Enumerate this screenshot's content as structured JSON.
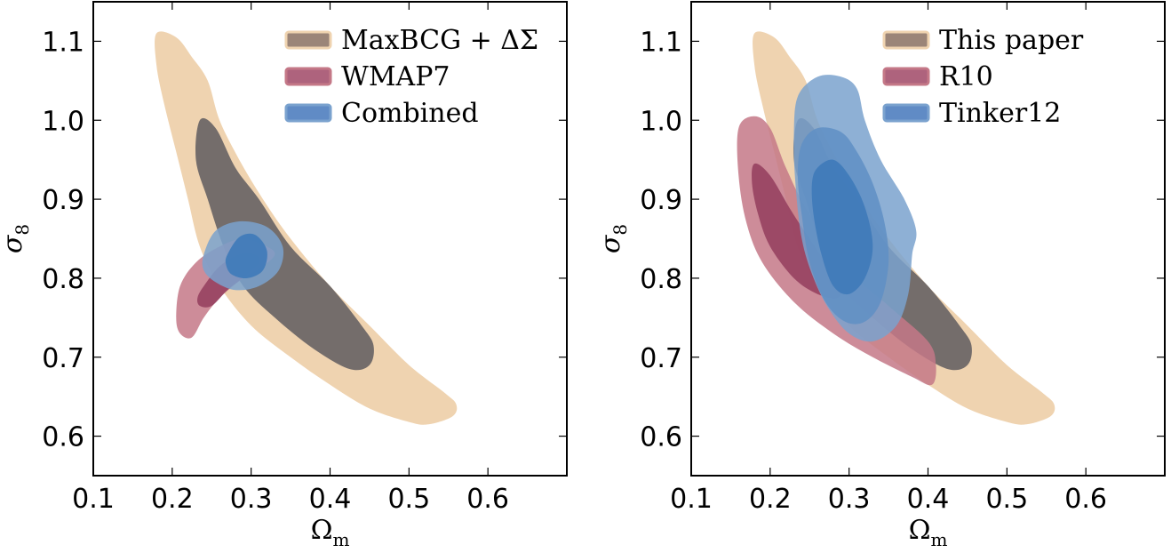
{
  "chart_data": [
    {
      "type": "contour",
      "xlabel": "Ω_m",
      "ylabel": "σ_8",
      "xlim": [
        0.1,
        0.7
      ],
      "ylim": [
        0.55,
        1.15
      ],
      "xticks": [
        "0.1",
        "0.2",
        "0.3",
        "0.4",
        "0.5",
        "0.6"
      ],
      "yticks": [
        "0.6",
        "0.7",
        "0.8",
        "0.9",
        "1.0",
        "1.1"
      ],
      "legend_position": "top-right",
      "series": [
        {
          "name": "MaxBCG + ΔΣ",
          "color_outer": "#efd3b0",
          "color_inner": "#746d6b",
          "legend_color": "#8a7060",
          "outer": [
            [
              0.18,
              1.11
            ],
            [
              0.205,
              1.105
            ],
            [
              0.225,
              1.08
            ],
            [
              0.245,
              1.05
            ],
            [
              0.26,
              1.0
            ],
            [
              0.285,
              0.95
            ],
            [
              0.315,
              0.9
            ],
            [
              0.35,
              0.85
            ],
            [
              0.4,
              0.79
            ],
            [
              0.45,
              0.74
            ],
            [
              0.5,
              0.69
            ],
            [
              0.545,
              0.655
            ],
            [
              0.56,
              0.64
            ],
            [
              0.555,
              0.625
            ],
            [
              0.525,
              0.615
            ],
            [
              0.5,
              0.618
            ],
            [
              0.45,
              0.635
            ],
            [
              0.4,
              0.665
            ],
            [
              0.35,
              0.7
            ],
            [
              0.3,
              0.74
            ],
            [
              0.26,
              0.79
            ],
            [
              0.235,
              0.84
            ],
            [
              0.22,
              0.9
            ],
            [
              0.205,
              0.96
            ],
            [
              0.19,
              1.02
            ],
            [
              0.18,
              1.07
            ]
          ],
          "inner": [
            [
              0.235,
              1.0
            ],
            [
              0.255,
              0.99
            ],
            [
              0.28,
              0.94
            ],
            [
              0.31,
              0.9
            ],
            [
              0.35,
              0.84
            ],
            [
              0.4,
              0.79
            ],
            [
              0.44,
              0.74
            ],
            [
              0.455,
              0.715
            ],
            [
              0.45,
              0.69
            ],
            [
              0.425,
              0.685
            ],
            [
              0.38,
              0.71
            ],
            [
              0.33,
              0.75
            ],
            [
              0.29,
              0.79
            ],
            [
              0.265,
              0.84
            ],
            [
              0.245,
              0.9
            ],
            [
              0.23,
              0.95
            ]
          ]
        },
        {
          "name": "WMAP7",
          "color_outer": "#c47887",
          "color_inner": "#974160",
          "legend_color": "#a04866",
          "outer": [
            [
              0.21,
              0.79
            ],
            [
              0.23,
              0.82
            ],
            [
              0.26,
              0.84
            ],
            [
              0.29,
              0.85
            ],
            [
              0.32,
              0.84
            ],
            [
              0.33,
              0.83
            ],
            [
              0.315,
              0.815
            ],
            [
              0.29,
              0.8
            ],
            [
              0.26,
              0.775
            ],
            [
              0.24,
              0.75
            ],
            [
              0.225,
              0.725
            ],
            [
              0.21,
              0.73
            ],
            [
              0.205,
              0.75
            ]
          ],
          "inner": [
            [
              0.24,
              0.79
            ],
            [
              0.26,
              0.815
            ],
            [
              0.285,
              0.83
            ],
            [
              0.305,
              0.83
            ],
            [
              0.31,
              0.82
            ],
            [
              0.295,
              0.805
            ],
            [
              0.27,
              0.785
            ],
            [
              0.25,
              0.765
            ],
            [
              0.235,
              0.765
            ],
            [
              0.232,
              0.775
            ]
          ]
        },
        {
          "name": "Combined",
          "color_outer": "#7aa2ce",
          "color_inner": "#3e7ab9",
          "legend_color": "#4477bb",
          "outer": [
            [
              0.24,
              0.83
            ],
            [
              0.255,
              0.86
            ],
            [
              0.285,
              0.872
            ],
            [
              0.32,
              0.865
            ],
            [
              0.34,
              0.84
            ],
            [
              0.335,
              0.81
            ],
            [
              0.31,
              0.79
            ],
            [
              0.28,
              0.785
            ],
            [
              0.255,
              0.795
            ],
            [
              0.24,
              0.81
            ]
          ],
          "inner": [
            [
              0.27,
              0.83
            ],
            [
              0.285,
              0.852
            ],
            [
              0.305,
              0.855
            ],
            [
              0.32,
              0.835
            ],
            [
              0.315,
              0.81
            ],
            [
              0.295,
              0.8
            ],
            [
              0.275,
              0.805
            ],
            [
              0.268,
              0.818
            ]
          ]
        }
      ]
    },
    {
      "type": "contour",
      "xlabel": "Ω_m",
      "ylabel": "σ_8",
      "xlim": [
        0.1,
        0.7
      ],
      "ylim": [
        0.55,
        1.15
      ],
      "xticks": [
        "0.1",
        "0.2",
        "0.3",
        "0.4",
        "0.5",
        "0.6"
      ],
      "yticks": [
        "0.6",
        "0.7",
        "0.8",
        "0.9",
        "1.0",
        "1.1"
      ],
      "legend_position": "top-right",
      "series": [
        {
          "name": "This  paper",
          "color_outer": "#efd3b0",
          "color_inner": "#746d6b",
          "legend_color": "#8a7060",
          "outer": [
            [
              0.18,
              1.11
            ],
            [
              0.205,
              1.105
            ],
            [
              0.225,
              1.08
            ],
            [
              0.245,
              1.05
            ],
            [
              0.26,
              1.0
            ],
            [
              0.285,
              0.95
            ],
            [
              0.315,
              0.9
            ],
            [
              0.35,
              0.85
            ],
            [
              0.4,
              0.79
            ],
            [
              0.45,
              0.74
            ],
            [
              0.5,
              0.69
            ],
            [
              0.545,
              0.655
            ],
            [
              0.56,
              0.64
            ],
            [
              0.555,
              0.625
            ],
            [
              0.525,
              0.615
            ],
            [
              0.5,
              0.618
            ],
            [
              0.45,
              0.635
            ],
            [
              0.4,
              0.665
            ],
            [
              0.35,
              0.7
            ],
            [
              0.3,
              0.74
            ],
            [
              0.26,
              0.79
            ],
            [
              0.235,
              0.84
            ],
            [
              0.22,
              0.9
            ],
            [
              0.205,
              0.96
            ],
            [
              0.19,
              1.02
            ],
            [
              0.18,
              1.07
            ]
          ],
          "inner": [
            [
              0.235,
              1.0
            ],
            [
              0.255,
              0.99
            ],
            [
              0.28,
              0.94
            ],
            [
              0.31,
              0.9
            ],
            [
              0.35,
              0.84
            ],
            [
              0.4,
              0.79
            ],
            [
              0.44,
              0.74
            ],
            [
              0.455,
              0.715
            ],
            [
              0.45,
              0.69
            ],
            [
              0.425,
              0.685
            ],
            [
              0.38,
              0.71
            ],
            [
              0.33,
              0.75
            ],
            [
              0.29,
              0.79
            ],
            [
              0.265,
              0.84
            ],
            [
              0.245,
              0.9
            ],
            [
              0.23,
              0.95
            ]
          ]
        },
        {
          "name": "R10",
          "color_outer": "#c47887",
          "color_inner": "#974160",
          "legend_color": "#a04866",
          "outer": [
            [
              0.16,
              0.99
            ],
            [
              0.18,
              1.005
            ],
            [
              0.2,
              0.99
            ],
            [
              0.22,
              0.94
            ],
            [
              0.25,
              0.88
            ],
            [
              0.3,
              0.81
            ],
            [
              0.35,
              0.765
            ],
            [
              0.4,
              0.72
            ],
            [
              0.41,
              0.69
            ],
            [
              0.405,
              0.665
            ],
            [
              0.38,
              0.675
            ],
            [
              0.33,
              0.7
            ],
            [
              0.28,
              0.73
            ],
            [
              0.23,
              0.77
            ],
            [
              0.19,
              0.82
            ],
            [
              0.17,
              0.87
            ],
            [
              0.16,
              0.93
            ]
          ],
          "inner": [
            [
              0.18,
              0.945
            ],
            [
              0.2,
              0.93
            ],
            [
              0.23,
              0.88
            ],
            [
              0.27,
              0.82
            ],
            [
              0.29,
              0.79
            ],
            [
              0.285,
              0.775
            ],
            [
              0.26,
              0.78
            ],
            [
              0.23,
              0.8
            ],
            [
              0.2,
              0.84
            ],
            [
              0.185,
              0.88
            ],
            [
              0.177,
              0.92
            ]
          ]
        },
        {
          "name": "Tinker12",
          "color_outer": "#7aa2ce",
          "color_inner": "#3e7ab9",
          "legend_color": "#4477bb",
          "outer": [
            [
              0.235,
              1.03
            ],
            [
              0.26,
              1.055
            ],
            [
              0.29,
              1.055
            ],
            [
              0.31,
              1.04
            ],
            [
              0.32,
              1.0
            ],
            [
              0.34,
              0.95
            ],
            [
              0.37,
              0.9
            ],
            [
              0.385,
              0.86
            ],
            [
              0.38,
              0.83
            ],
            [
              0.375,
              0.78
            ],
            [
              0.36,
              0.74
            ],
            [
              0.33,
              0.72
            ],
            [
              0.3,
              0.73
            ],
            [
              0.275,
              0.76
            ],
            [
              0.255,
              0.8
            ],
            [
              0.24,
              0.85
            ],
            [
              0.232,
              0.92
            ],
            [
              0.23,
              0.98
            ]
          ],
          "mid": [
            [
              0.24,
              0.97
            ],
            [
              0.26,
              0.99
            ],
            [
              0.29,
              0.985
            ],
            [
              0.31,
              0.96
            ],
            [
              0.33,
              0.92
            ],
            [
              0.345,
              0.87
            ],
            [
              0.35,
              0.82
            ],
            [
              0.34,
              0.77
            ],
            [
              0.32,
              0.745
            ],
            [
              0.295,
              0.745
            ],
            [
              0.27,
              0.77
            ],
            [
              0.25,
              0.82
            ],
            [
              0.24,
              0.88
            ],
            [
              0.235,
              0.93
            ]
          ],
          "inner": [
            [
              0.26,
              0.94
            ],
            [
              0.28,
              0.95
            ],
            [
              0.3,
              0.93
            ],
            [
              0.32,
              0.89
            ],
            [
              0.33,
              0.84
            ],
            [
              0.32,
              0.8
            ],
            [
              0.3,
              0.78
            ],
            [
              0.28,
              0.79
            ],
            [
              0.265,
              0.83
            ],
            [
              0.255,
              0.88
            ],
            [
              0.253,
              0.92
            ]
          ]
        }
      ]
    }
  ]
}
